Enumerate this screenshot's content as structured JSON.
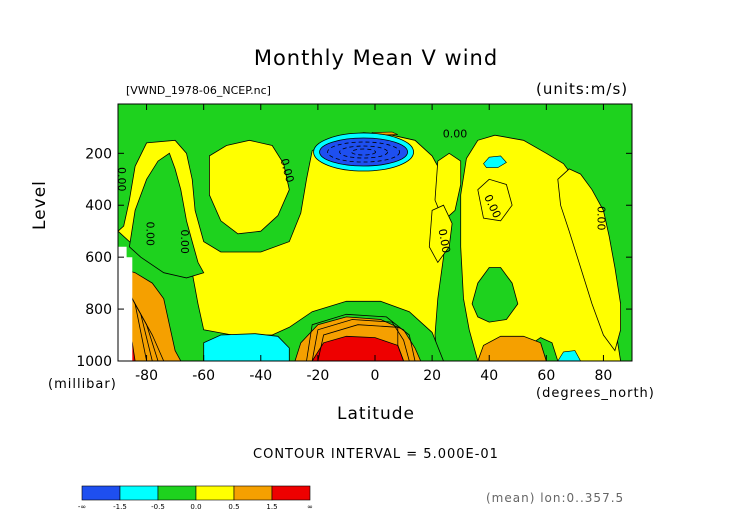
{
  "title": "Monthly Mean V wind",
  "dataset_label": "[VWND_1978-06_NCEP.nc]",
  "units_label": "(units:m/s)",
  "footer": "(mean) lon:0..357.5",
  "contour_interval_label": "CONTOUR INTERVAL = 5.000E-01",
  "colors": {
    "lt_-1.5": "#1e4ff0",
    "-1.5_-0.5": "#00ffff",
    "-0.5_0.0": "#1ed21e",
    "0.0_0.5": "#ffff00",
    "0.5_1.5": "#f5a000",
    "gt_1.5": "#ee0000"
  },
  "chart_data": {
    "type": "heatmap",
    "title": "Monthly Mean V wind",
    "xlabel": "Latitude",
    "xunit": "(degrees_north)",
    "ylabel": "Level",
    "yunit": "(millibar)",
    "xlim": [
      -90,
      90
    ],
    "ylim": [
      1000,
      10
    ],
    "xticks": [
      -80,
      -60,
      -40,
      -20,
      0,
      20,
      40,
      60,
      80
    ],
    "yticks": [
      200,
      400,
      600,
      800,
      1000
    ],
    "contour_labels": [
      "0.00",
      "0.00",
      "0.00",
      "0.00",
      "0.00",
      "0.00",
      "0.00",
      "0.00"
    ],
    "colorbar": {
      "labels": [
        "-∞",
        "-1.5",
        "-0.5",
        "0.0",
        "0.5",
        "1.5",
        "∞"
      ],
      "bins": [
        {
          "range": "< -1.5",
          "color": "#1e4ff0"
        },
        {
          "range": "-1.5 to -0.5",
          "color": "#00ffff"
        },
        {
          "range": "-0.5 to 0.0",
          "color": "#1ed21e"
        },
        {
          "range": "0.0 to 0.5",
          "color": "#ffff00"
        },
        {
          "range": "0.5 to 1.5",
          "color": "#f5a000"
        },
        {
          "range": "> 1.5",
          "color": "#ee0000"
        }
      ]
    },
    "regions": [
      {
        "name": "background",
        "value_class": "0.0_0.5",
        "lat": [
          -90,
          90
        ],
        "lev": [
          10,
          1000
        ]
      },
      {
        "name": "north-high-lat",
        "value_class": "-0.5_0.0",
        "lat": [
          42,
          90
        ],
        "lev": [
          10,
          1000
        ]
      },
      {
        "name": "upper-trop",
        "value_class": "-0.5_0.0",
        "lat": [
          -90,
          90
        ],
        "lev": [
          10,
          190
        ]
      },
      {
        "name": "upper-trop-easterly-core",
        "value_class": "lt_-1.5",
        "lat": [
          -11,
          3
        ],
        "lev": [
          150,
          240
        ]
      },
      {
        "name": "upper-trop-easterly",
        "value_class": "-1.5_-0.5",
        "lat": [
          -15,
          7
        ],
        "lev": [
          120,
          270
        ]
      },
      {
        "name": "near-surface-southern",
        "value_class": "-1.5_-0.5",
        "lat": [
          -60,
          -30
        ],
        "lev": [
          920,
          1000
        ]
      },
      {
        "name": "near-surface-core",
        "value_class": "gt_1.5",
        "lat": [
          -20,
          5
        ],
        "lev": [
          910,
          1000
        ]
      },
      {
        "name": "near-surface-ring",
        "value_class": "0.5_1.5",
        "lat": [
          -27,
          13
        ],
        "lev": [
          830,
          1000
        ]
      },
      {
        "name": "antarctic-jet",
        "value_class": "0.5_1.5",
        "lat": [
          -90,
          -70
        ],
        "lev": [
          680,
          1000
        ]
      },
      {
        "name": "antarctic-jet-core",
        "value_class": "gt_1.5",
        "lat": [
          -88,
          -83
        ],
        "lev": [
          890,
          1000
        ]
      },
      {
        "name": "northern-surface",
        "value_class": "0.5_1.5",
        "lat": [
          36,
          60
        ],
        "lev": [
          900,
          1000
        ]
      }
    ]
  }
}
